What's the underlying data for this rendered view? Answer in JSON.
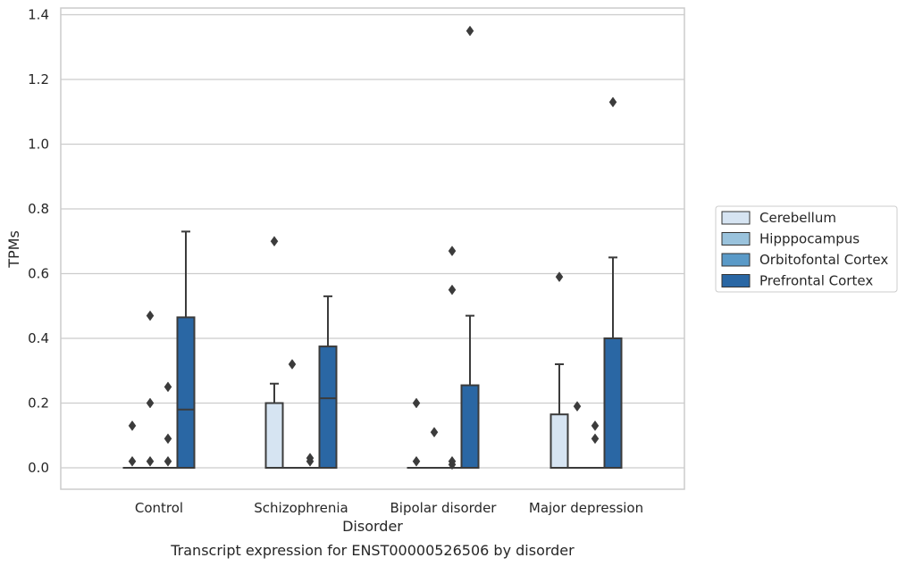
{
  "chart_data": {
    "type": "box",
    "caption": "Transcript expression for ENST00000526506 by disorder",
    "xlabel": "Disorder",
    "ylabel": "TPMs",
    "ylim": [
      -0.065,
      1.42
    ],
    "yticks": [
      "0.0",
      "0.2",
      "0.4",
      "0.6",
      "0.8",
      "1.0",
      "1.2",
      "1.4"
    ],
    "ytick_values": [
      0,
      0.2,
      0.4,
      0.6,
      0.8,
      1.0,
      1.2,
      1.4
    ],
    "grid": "horizontal",
    "legend_position": "right",
    "categories": [
      "Control",
      "Schizophrenia",
      "Bipolar disorder",
      "Major depression"
    ],
    "series": [
      {
        "name": "Cerebellum",
        "color": "#d6e4f2",
        "boxes": [
          {
            "q1": 0,
            "median": 0,
            "q3": 0,
            "whisker_low": 0,
            "whisker_high": 0,
            "outliers": [
              0.02,
              0.13
            ]
          },
          {
            "q1": 0,
            "median": 0,
            "q3": 0.2,
            "whisker_low": 0,
            "whisker_high": 0.26,
            "outliers": [
              0.7
            ]
          },
          {
            "q1": 0,
            "median": 0,
            "q3": 0,
            "whisker_low": 0,
            "whisker_high": 0,
            "outliers": [
              0.02,
              0.2
            ]
          },
          {
            "q1": 0,
            "median": 0,
            "q3": 0.165,
            "whisker_low": 0,
            "whisker_high": 0.32,
            "outliers": [
              0.59
            ]
          }
        ]
      },
      {
        "name": "Hipppocampus",
        "color": "#9ac3dd",
        "boxes": [
          {
            "q1": 0,
            "median": 0,
            "q3": 0,
            "whisker_low": 0,
            "whisker_high": 0,
            "outliers": [
              0.02,
              0.2,
              0.47
            ]
          },
          {
            "q1": 0,
            "median": 0,
            "q3": 0,
            "whisker_low": 0,
            "whisker_high": 0,
            "outliers": [
              0.32
            ]
          },
          {
            "q1": 0,
            "median": 0,
            "q3": 0,
            "whisker_low": 0,
            "whisker_high": 0,
            "outliers": [
              0.11
            ]
          },
          {
            "q1": 0,
            "median": 0,
            "q3": 0,
            "whisker_low": 0,
            "whisker_high": 0,
            "outliers": [
              0.19
            ]
          }
        ]
      },
      {
        "name": "Orbitofontal Cortex",
        "color": "#5a9ac8",
        "boxes": [
          {
            "q1": 0,
            "median": 0,
            "q3": 0,
            "whisker_low": 0,
            "whisker_high": 0,
            "outliers": [
              0.02,
              0.09,
              0.25
            ]
          },
          {
            "q1": 0,
            "median": 0,
            "q3": 0,
            "whisker_low": 0,
            "whisker_high": 0,
            "outliers": [
              0.02,
              0.03
            ]
          },
          {
            "q1": 0,
            "median": 0,
            "q3": 0,
            "whisker_low": 0,
            "whisker_high": 0,
            "outliers": [
              0.01,
              0.02,
              0.55,
              0.67
            ]
          },
          {
            "q1": 0,
            "median": 0,
            "q3": 0,
            "whisker_low": 0,
            "whisker_high": 0,
            "outliers": [
              0.09,
              0.13
            ]
          }
        ]
      },
      {
        "name": "Prefrontal Cortex",
        "color": "#2a67a4",
        "boxes": [
          {
            "q1": 0,
            "median": 0.18,
            "q3": 0.465,
            "whisker_low": 0,
            "whisker_high": 0.73,
            "outliers": []
          },
          {
            "q1": 0,
            "median": 0.215,
            "q3": 0.375,
            "whisker_low": 0,
            "whisker_high": 0.53,
            "outliers": []
          },
          {
            "q1": 0,
            "median": 0,
            "q3": 0.255,
            "whisker_low": 0,
            "whisker_high": 0.47,
            "outliers": [
              1.35
            ]
          },
          {
            "q1": 0,
            "median": 0,
            "q3": 0.4,
            "whisker_low": 0,
            "whisker_high": 0.65,
            "outliers": [
              1.13
            ]
          }
        ]
      }
    ]
  }
}
